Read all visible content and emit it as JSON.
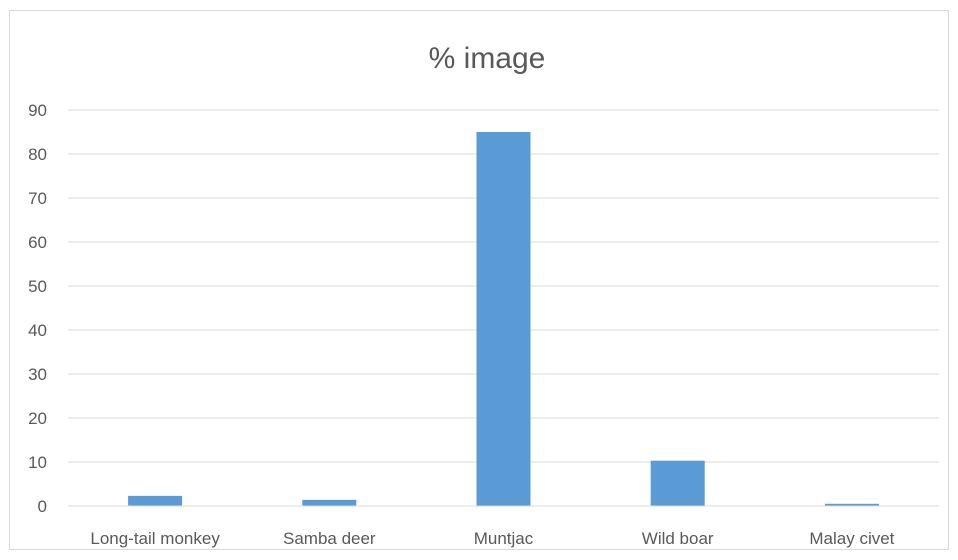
{
  "chart_data": {
    "type": "bar",
    "title": "% image",
    "xlabel": "",
    "ylabel": "",
    "categories": [
      "Long-tail monkey",
      "Samba deer",
      "Muntjac",
      "Wild boar",
      "Malay civet"
    ],
    "values": [
      2.3,
      1.4,
      85.0,
      10.3,
      0.5
    ],
    "ylim": [
      0,
      90
    ],
    "yticks": [
      0,
      10,
      20,
      30,
      40,
      50,
      60,
      70,
      80,
      90
    ],
    "bar_color": "#5b9bd5",
    "grid": true,
    "legend": "none"
  }
}
